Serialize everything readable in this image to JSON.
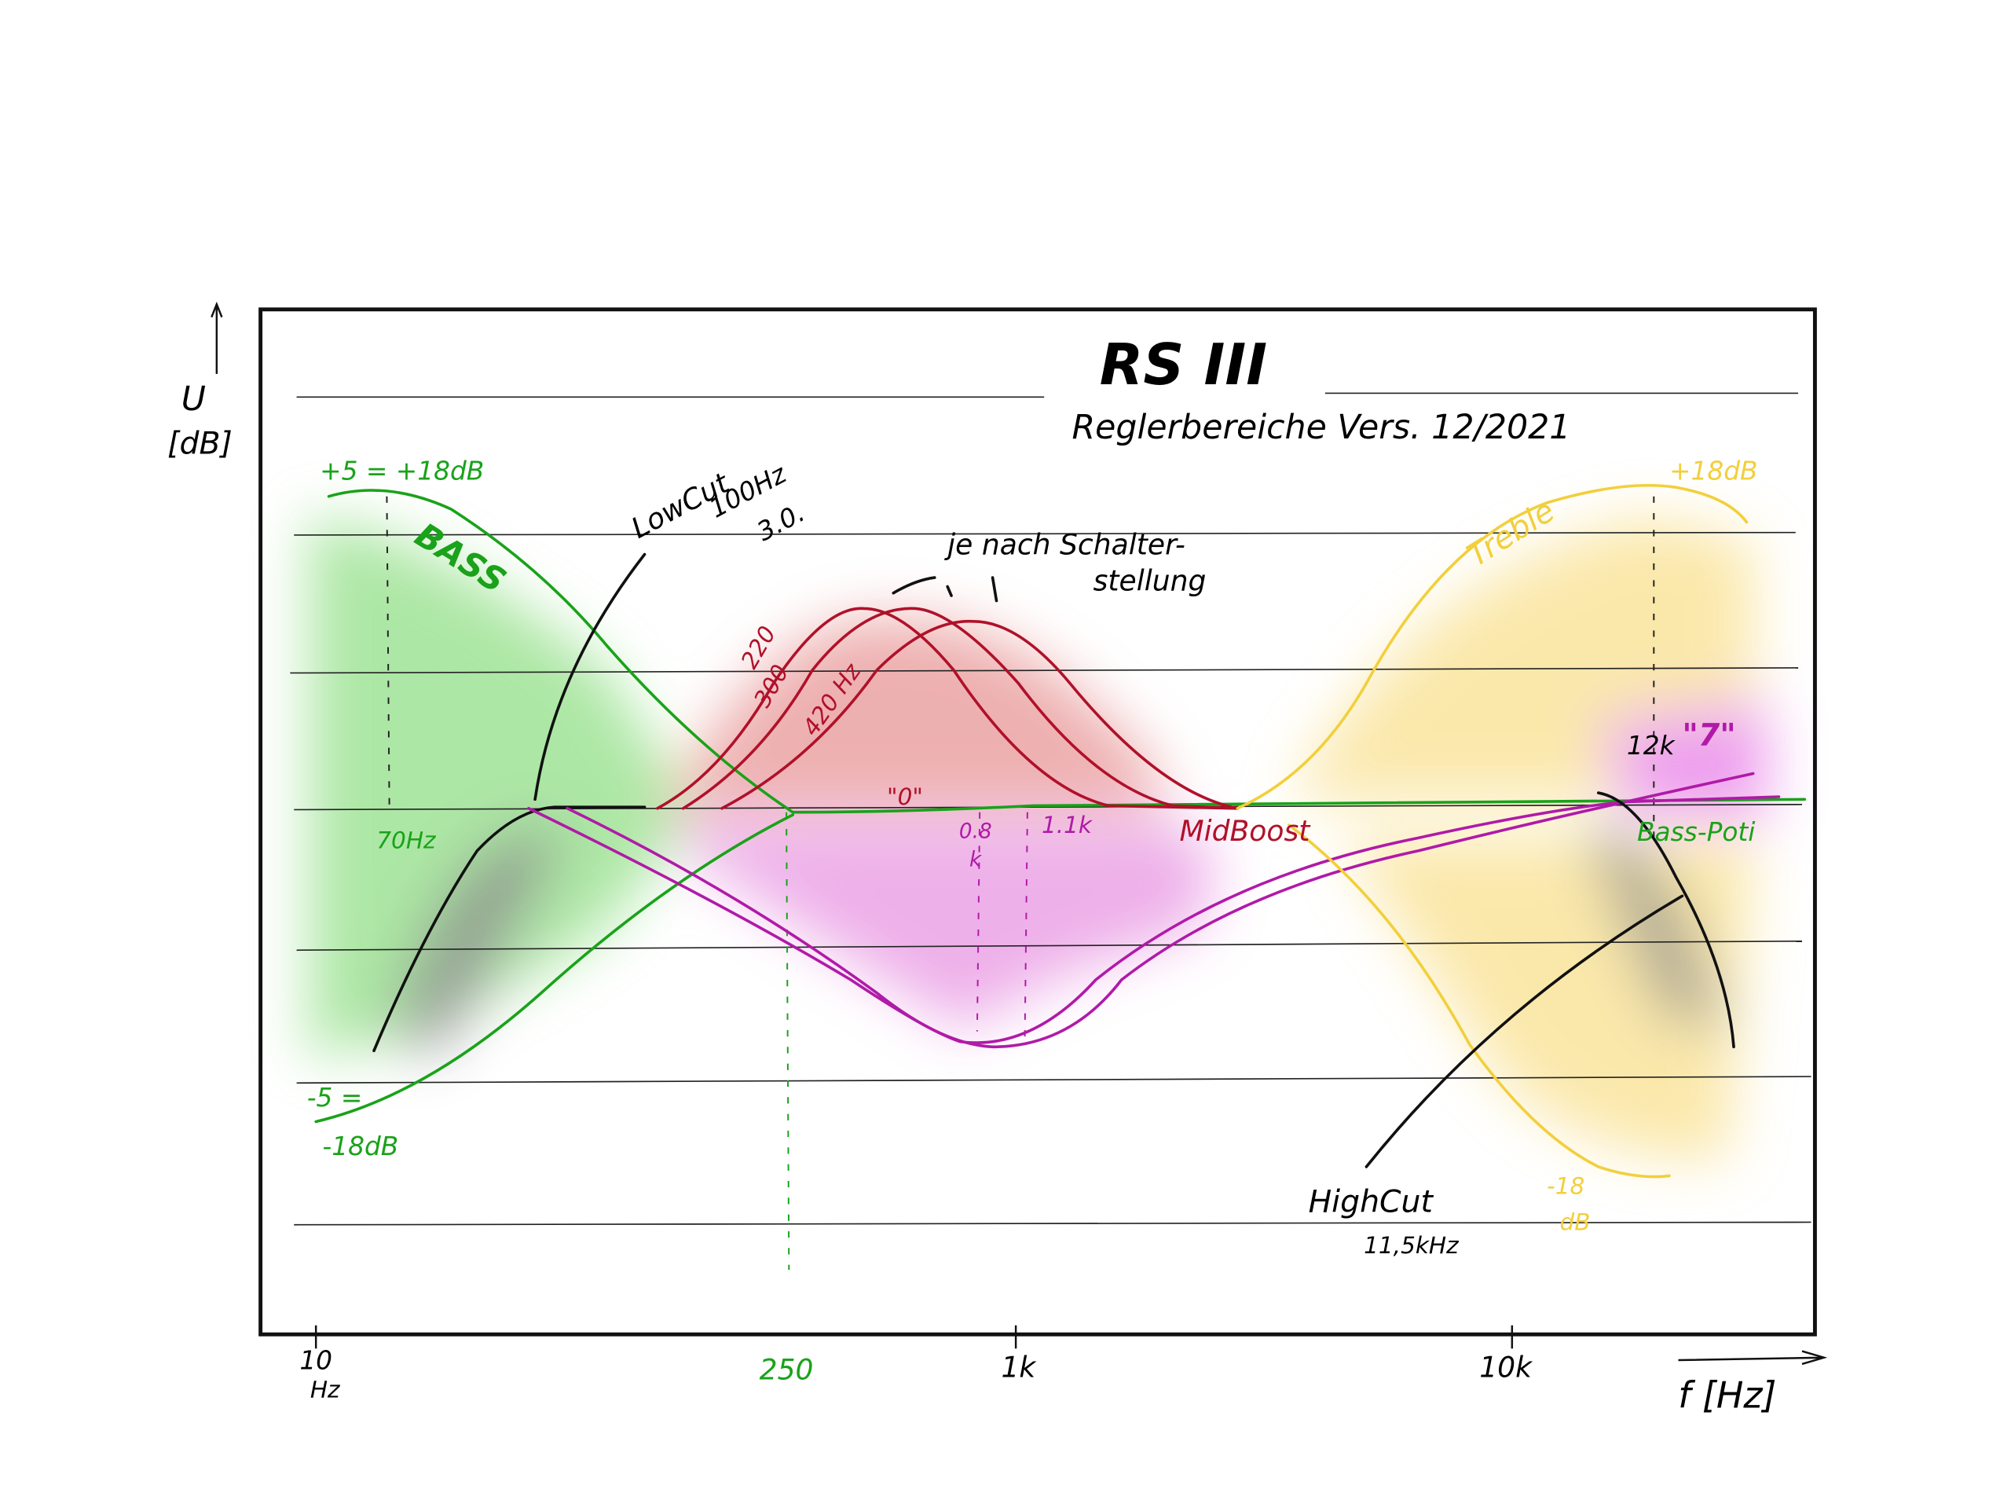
{
  "header": {
    "title": "RS III",
    "subtitle": "Reglerbereiche Vers. 12/2021"
  },
  "axes": {
    "y_label": [
      "U",
      "[dB]"
    ],
    "x_label": "f [Hz]",
    "x_ticks": [
      [
        "10",
        "Hz"
      ],
      "250",
      "1k",
      "10k"
    ]
  },
  "bass": {
    "boost": "+5 = +18dB",
    "name": "BASS",
    "freq": "70Hz",
    "cut": "-5 =",
    "cut_db": "-18dB"
  },
  "lowcut": [
    "LowCut",
    "100Hz",
    "3.0."
  ],
  "mid": {
    "note": [
      "je nach Schalter-",
      "stellung"
    ],
    "freqs": [
      "220",
      "300",
      "420 Hz"
    ],
    "zero": "\"0\"",
    "cut_freqs": [
      [
        "0.8",
        "k"
      ],
      "1.1k"
    ],
    "name": "MidBoost"
  },
  "treble": {
    "name": "Treble",
    "boost": "+18dB",
    "cut": [
      "-18",
      "dB"
    ]
  },
  "presence": {
    "freq": "12k",
    "setting": "\"7\"",
    "name": "Bass-Poti"
  },
  "highcut": [
    "HighCut",
    "11,5kHz"
  ]
}
